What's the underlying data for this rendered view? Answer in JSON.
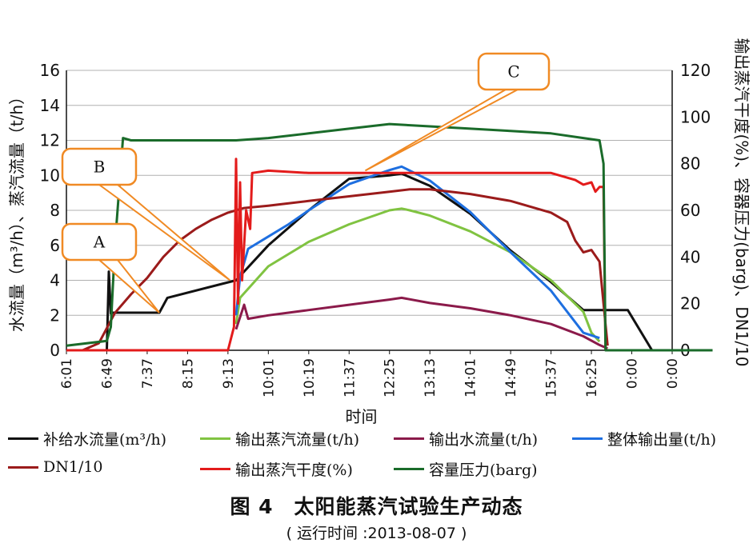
{
  "chart_data": {
    "type": "line",
    "xlabel": "时间",
    "ylabel_left": "水流量（m³/h）、蒸汽流量（t/h）",
    "ylabel_right": "输出蒸汽干度(%)、容器压力(barg)、DN1/10",
    "x_ticks": [
      "6:01",
      "6:49",
      "7:37",
      "8:15",
      "9:13",
      "10:01",
      "10:19",
      "11:37",
      "12:25",
      "13:13",
      "14:01",
      "14:49",
      "15:37",
      "16:25",
      "0:00",
      "0:00"
    ],
    "ylim_left": [
      0,
      16
    ],
    "y_ticks_left": [
      "0",
      "2",
      "4",
      "6",
      "8",
      "10",
      "12",
      "14",
      "16"
    ],
    "ylim_right": [
      0,
      120
    ],
    "y_ticks_right": [
      "0",
      "20",
      "40",
      "60",
      "80",
      "100",
      "120"
    ],
    "grid": "horizontal",
    "legend_position": "bottom",
    "series": [
      {
        "name": "补给水流量(m³/h)",
        "color": "#111111",
        "axis": "left",
        "x": [
          0,
          1.0,
          1.05,
          1.1,
          1.15,
          1.2,
          2.3,
          2.5,
          4.2,
          5.0,
          6.0,
          7.0,
          8.0,
          8.3,
          9.0,
          10.0,
          11.0,
          12.0,
          12.8,
          13.4,
          13.9,
          14.5
        ],
        "y": [
          0,
          0,
          4.5,
          2.1,
          2.15,
          2.15,
          2.15,
          3.0,
          4.0,
          6.0,
          8.0,
          9.8,
          10.0,
          10.1,
          9.4,
          7.8,
          5.7,
          3.9,
          2.3,
          2.3,
          2.3,
          0
        ]
      },
      {
        "name": "输出蒸汽流量(t/h)",
        "color": "#80c341",
        "axis": "left",
        "x": [
          4.2,
          4.3,
          5.0,
          6.0,
          7.0,
          8.0,
          8.3,
          8.5,
          9.0,
          10.0,
          11.0,
          12.0,
          12.8,
          13.0,
          13.2
        ],
        "y": [
          1.5,
          3.0,
          4.8,
          6.2,
          7.2,
          8.0,
          8.1,
          8.0,
          7.7,
          6.8,
          5.6,
          4.0,
          2.2,
          1.0,
          0.5
        ]
      },
      {
        "name": "输出水流量(t/h)",
        "color": "#8b1a4a",
        "axis": "left",
        "x": [
          4.2,
          4.4,
          4.5,
          5.0,
          6.0,
          7.0,
          8.0,
          8.3,
          9.0,
          10.0,
          11.0,
          12.0,
          12.8,
          13.2,
          13.4
        ],
        "y": [
          1.2,
          2.6,
          1.8,
          2.0,
          2.3,
          2.6,
          2.9,
          3.0,
          2.7,
          2.4,
          2.0,
          1.5,
          0.8,
          0.3,
          0.1
        ]
      },
      {
        "name": "整体输出量(t/h)",
        "color": "#1e6fe0",
        "axis": "left",
        "x": [
          4.2,
          4.3,
          4.5,
          5.0,
          5.5,
          6.0,
          7.0,
          8.0,
          8.3,
          9.0,
          10.0,
          11.0,
          12.0,
          12.8,
          13.2
        ],
        "y": [
          2.0,
          4.2,
          5.8,
          6.5,
          7.2,
          8.0,
          9.5,
          10.3,
          10.5,
          9.7,
          7.9,
          5.6,
          3.4,
          1.0,
          0.7
        ]
      },
      {
        "name": "DN1/10",
        "color": "#9b1b1b",
        "axis": "right",
        "x": [
          0,
          0.4,
          0.8,
          1.2,
          1.6,
          2.0,
          2.4,
          2.8,
          3.2,
          3.6,
          4.0,
          4.4,
          5.0,
          6.0,
          7.0,
          8.0,
          8.5,
          9.0,
          10.0,
          11.0,
          12.0,
          12.4,
          12.6,
          12.8,
          13.0,
          13.2,
          13.3,
          13.4
        ],
        "y": [
          0,
          0,
          3,
          16,
          24,
          31,
          40,
          47,
          52,
          56,
          59,
          61,
          62,
          64,
          66,
          68,
          69,
          69,
          67,
          64,
          59,
          55,
          47,
          42,
          43,
          38,
          20,
          2
        ]
      },
      {
        "name": "输出蒸汽干度(%)",
        "color": "#e31b1b",
        "axis": "right",
        "x": [
          0,
          4.0,
          4.15,
          4.2,
          4.25,
          4.3,
          4.35,
          4.45,
          4.55,
          4.6,
          5.0,
          6.0,
          7.0,
          8.0,
          9.0,
          10.0,
          11.0,
          12.0,
          12.6,
          12.8,
          13.0,
          13.1,
          13.2,
          13.3,
          13.35
        ],
        "y": [
          0,
          0,
          10,
          82,
          20,
          72,
          30,
          60,
          52,
          76,
          77,
          76,
          76,
          76,
          76,
          76,
          76,
          76,
          73,
          71,
          72,
          68,
          70,
          70,
          0
        ]
      },
      {
        "name": "容量压力(barg)",
        "color": "#1a6b2a",
        "axis": "right",
        "x": [
          0,
          1.0,
          1.1,
          1.2,
          1.4,
          1.6,
          2.0,
          3.0,
          4.0,
          4.2,
          5.0,
          6.0,
          7.0,
          8.0,
          9.0,
          10.0,
          11.0,
          12.0,
          12.8,
          13.2,
          13.3,
          13.35,
          14.0,
          16.0
        ],
        "y": [
          2,
          4,
          10,
          45,
          91,
          90,
          90,
          90,
          90,
          90,
          91,
          93,
          95,
          97,
          96,
          95,
          94,
          93,
          91,
          90,
          80,
          0,
          0,
          0
        ]
      }
    ],
    "annotations": [
      {
        "label": "A",
        "target_x": 2.3,
        "target_y_left": 2.15
      },
      {
        "label": "B",
        "target_x": 4.05,
        "target_y_left": 4.0
      },
      {
        "label": "C",
        "target_x": 7.4,
        "target_y_right": 77
      }
    ]
  },
  "legend": [
    {
      "label": "补给水流量(m³/h)",
      "color": "#111111"
    },
    {
      "label": "输出蒸汽流量(t/h)",
      "color": "#80c341"
    },
    {
      "label": "输出水流量(t/h)",
      "color": "#8b1a4a"
    },
    {
      "label": "整体输出量(t/h)",
      "color": "#1e6fe0"
    },
    {
      "label": "DN1/10",
      "color": "#9b1b1b"
    },
    {
      "label": "输出蒸汽干度(%)",
      "color": "#e31b1b"
    },
    {
      "label": "容量压力(barg)",
      "color": "#1a6b2a"
    }
  ],
  "caption": {
    "title": "图 4　太阳能蒸汽试验生产动态",
    "subtitle": "( 运行时间 :2013-08-07 )"
  }
}
